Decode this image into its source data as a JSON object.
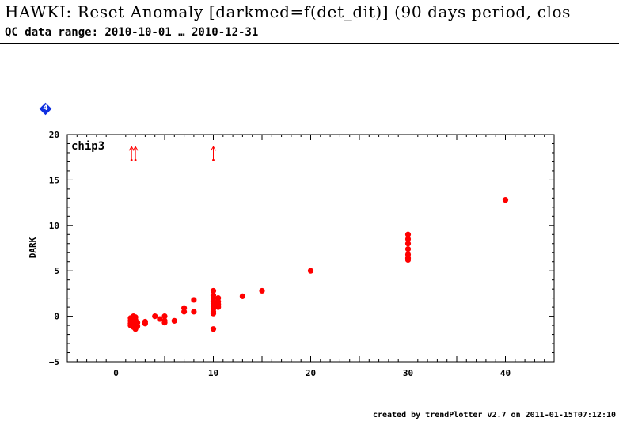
{
  "page": {
    "title": "HAWKI: Reset Anomaly [darkmed=f(det_dit)] (90 days period, clos",
    "subtitle": "QC data range: 2010-10-01 … 2010-12-31",
    "footer": "created by trendPlotter v2.7 on 2011-01-15T07:12:10",
    "marker_icon": "4"
  },
  "chart_data": {
    "type": "scatter",
    "panel_label": "chip3",
    "xlabel": "",
    "ylabel": "DARK",
    "xlim": [
      -5,
      45
    ],
    "ylim": [
      -5,
      20
    ],
    "xticks": [
      0,
      10,
      20,
      30,
      40
    ],
    "yticks": [
      -5,
      0,
      5,
      10,
      15,
      20
    ],
    "color": "#ff0000",
    "points": [
      {
        "x": 1.5,
        "y": -0.2
      },
      {
        "x": 1.5,
        "y": -0.5
      },
      {
        "x": 1.5,
        "y": -0.8
      },
      {
        "x": 1.5,
        "y": -1.0
      },
      {
        "x": 1.6,
        "y": -0.3
      },
      {
        "x": 1.7,
        "y": -0.6
      },
      {
        "x": 1.8,
        "y": -1.2
      },
      {
        "x": 1.8,
        "y": 0.0
      },
      {
        "x": 2.0,
        "y": -0.4
      },
      {
        "x": 2.0,
        "y": -0.9
      },
      {
        "x": 2.0,
        "y": -1.4
      },
      {
        "x": 2.0,
        "y": -0.1
      },
      {
        "x": 2.2,
        "y": -0.7
      },
      {
        "x": 2.2,
        "y": -1.1
      },
      {
        "x": 3.0,
        "y": -0.6
      },
      {
        "x": 3.0,
        "y": -0.8
      },
      {
        "x": 4.0,
        "y": 0.0
      },
      {
        "x": 4.5,
        "y": -0.3
      },
      {
        "x": 5.0,
        "y": 0.0
      },
      {
        "x": 5.0,
        "y": -0.5
      },
      {
        "x": 5.0,
        "y": -0.7
      },
      {
        "x": 6.0,
        "y": -0.5
      },
      {
        "x": 7.0,
        "y": 0.9
      },
      {
        "x": 7.0,
        "y": 0.5
      },
      {
        "x": 8.0,
        "y": 1.8
      },
      {
        "x": 8.0,
        "y": 0.5
      },
      {
        "x": 10.0,
        "y": 2.8
      },
      {
        "x": 10.0,
        "y": 2.3
      },
      {
        "x": 10.0,
        "y": 2.0
      },
      {
        "x": 10.0,
        "y": 1.7
      },
      {
        "x": 10.0,
        "y": 1.4
      },
      {
        "x": 10.0,
        "y": 1.1
      },
      {
        "x": 10.0,
        "y": 0.8
      },
      {
        "x": 10.0,
        "y": 0.5
      },
      {
        "x": 10.0,
        "y": 0.3
      },
      {
        "x": 10.0,
        "y": -1.4
      },
      {
        "x": 10.5,
        "y": 2.0
      },
      {
        "x": 10.5,
        "y": 1.6
      },
      {
        "x": 10.5,
        "y": 1.3
      },
      {
        "x": 10.5,
        "y": 1.0
      },
      {
        "x": 13.0,
        "y": 2.2
      },
      {
        "x": 15.0,
        "y": 2.8
      },
      {
        "x": 20.0,
        "y": 5.0
      },
      {
        "x": 30.0,
        "y": 9.0
      },
      {
        "x": 30.0,
        "y": 8.5
      },
      {
        "x": 30.0,
        "y": 8.0
      },
      {
        "x": 30.0,
        "y": 7.4
      },
      {
        "x": 30.0,
        "y": 6.8
      },
      {
        "x": 30.0,
        "y": 6.4
      },
      {
        "x": 30.0,
        "y": 6.2
      },
      {
        "x": 40.0,
        "y": 12.8
      }
    ],
    "off_scale_arrows": [
      {
        "x": 1.6,
        "y": 18.5
      },
      {
        "x": 2.0,
        "y": 18.5
      },
      {
        "x": 10.0,
        "y": 18.5
      }
    ]
  }
}
